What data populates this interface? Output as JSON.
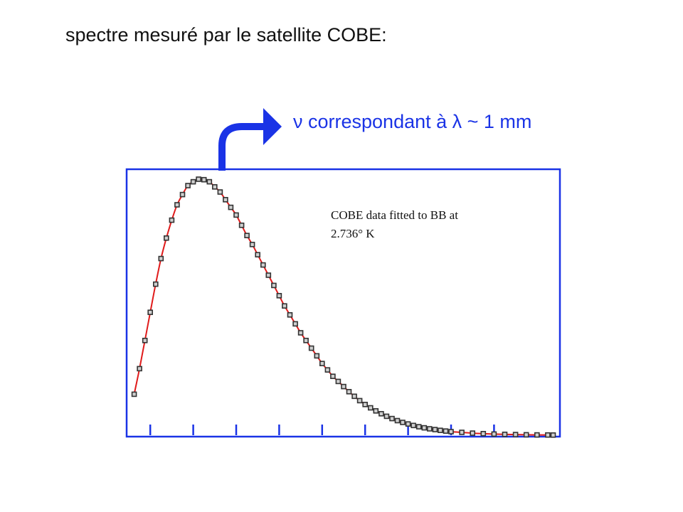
{
  "slide": {
    "title": "spectre mesuré par le satellite COBE:",
    "annotation": "ν correspondant à λ ~ 1 mm"
  },
  "colors": {
    "frame": "#1a33e6",
    "arrow": "#1a33e6",
    "fit_curve": "#e01b1b",
    "data_marker": "#333333",
    "annotation_text": "#1a33e6",
    "title_text": "#111111"
  },
  "chart_data": {
    "type": "scatter",
    "title": "",
    "xlabel": "",
    "ylabel": "",
    "xlim": [
      0,
      20
    ],
    "ylim": [
      0,
      1
    ],
    "x_ticks": [
      1,
      3,
      5,
      7,
      9,
      11,
      13,
      15,
      17
    ],
    "note_lines": [
      "COBE data fitted to BB at",
      "2.736° K"
    ],
    "fit": {
      "model": "blackbody",
      "temperature_K": 2.736
    },
    "series": [
      {
        "x": [
          0.25,
          0.5,
          0.75,
          1.0,
          1.25,
          1.5,
          1.75,
          2.0,
          2.25,
          2.5,
          2.75,
          3.0,
          3.25,
          3.5,
          3.75,
          4.0,
          4.25,
          4.5,
          4.75,
          5.0,
          5.25,
          5.5,
          5.75,
          6.0,
          6.25,
          6.5,
          6.75,
          7.0,
          7.25,
          7.5,
          7.75,
          8.0,
          8.25,
          8.5,
          8.75,
          9.0,
          9.25,
          9.5,
          9.75,
          10.0,
          10.25,
          10.5,
          10.75,
          11.0,
          11.25,
          11.5,
          11.75,
          12.0,
          12.25,
          12.5,
          12.75,
          13.0,
          13.25,
          13.5,
          13.75,
          14.0,
          14.25,
          14.5,
          14.75,
          15.0,
          15.5,
          16.0,
          16.5,
          17.0,
          17.5,
          18.0,
          18.5,
          19.0,
          19.5,
          19.75
        ],
        "y": [
          0.16,
          0.26,
          0.37,
          0.48,
          0.59,
          0.69,
          0.77,
          0.84,
          0.9,
          0.94,
          0.975,
          0.99,
          1.0,
          0.998,
          0.99,
          0.97,
          0.95,
          0.92,
          0.89,
          0.86,
          0.82,
          0.78,
          0.745,
          0.705,
          0.665,
          0.625,
          0.585,
          0.545,
          0.505,
          0.47,
          0.435,
          0.4,
          0.37,
          0.34,
          0.31,
          0.28,
          0.255,
          0.23,
          0.21,
          0.19,
          0.17,
          0.152,
          0.135,
          0.12,
          0.107,
          0.095,
          0.084,
          0.074,
          0.065,
          0.057,
          0.05,
          0.044,
          0.038,
          0.033,
          0.029,
          0.025,
          0.022,
          0.019,
          0.016,
          0.014,
          0.011,
          0.008,
          0.006,
          0.0045,
          0.0033,
          0.0024,
          0.0017,
          0.0012,
          0.0008,
          0.0006
        ]
      }
    ]
  }
}
